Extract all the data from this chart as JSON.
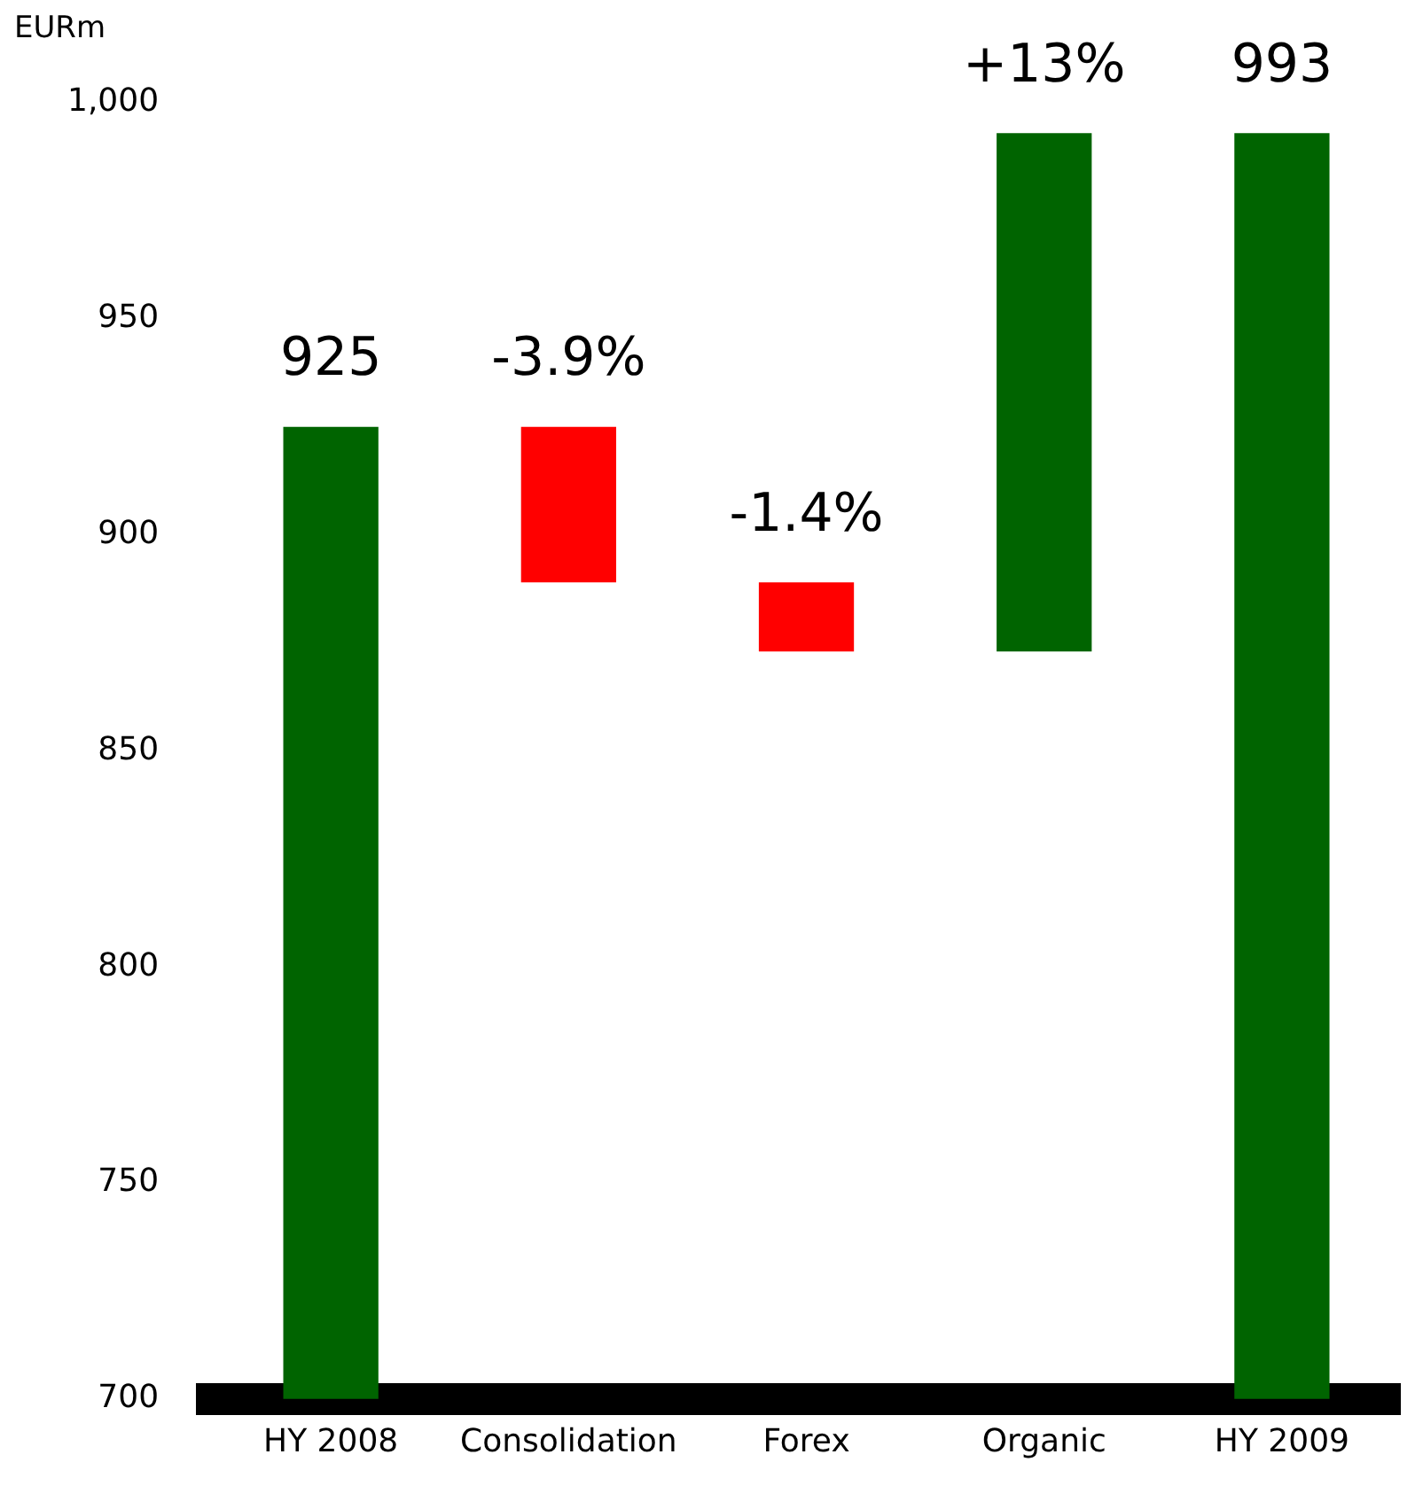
{
  "chart_data": {
    "type": "bar",
    "ylabel": "EURm",
    "categories": [
      "HY 2008",
      "Consolidation",
      "Forex",
      "Organic",
      "HY 2009"
    ],
    "values": [
      925,
      -36,
      -16,
      120,
      993
    ],
    "base": [
      0,
      925,
      889,
      873,
      0
    ],
    "colors": [
      "#006400",
      "#ff0000",
      "#ff0000",
      "#006400",
      "#006400"
    ],
    "value_labels": [
      "925",
      null,
      null,
      null,
      "993"
    ],
    "annotations": [
      {
        "text": "-3.9%",
        "x": "Consolidation",
        "y": 925
      },
      {
        "text": "-1.4%",
        "x": "Forex",
        "y": 889
      },
      {
        "text": "+13%",
        "x": "Organic",
        "y": 993
      }
    ],
    "ylim": [
      700,
      1000
    ],
    "yticks": [
      700,
      750,
      800,
      850,
      900,
      950,
      {
        "value": 1000,
        "label": "1,000"
      }
    ],
    "grid": false,
    "legend": false
  }
}
